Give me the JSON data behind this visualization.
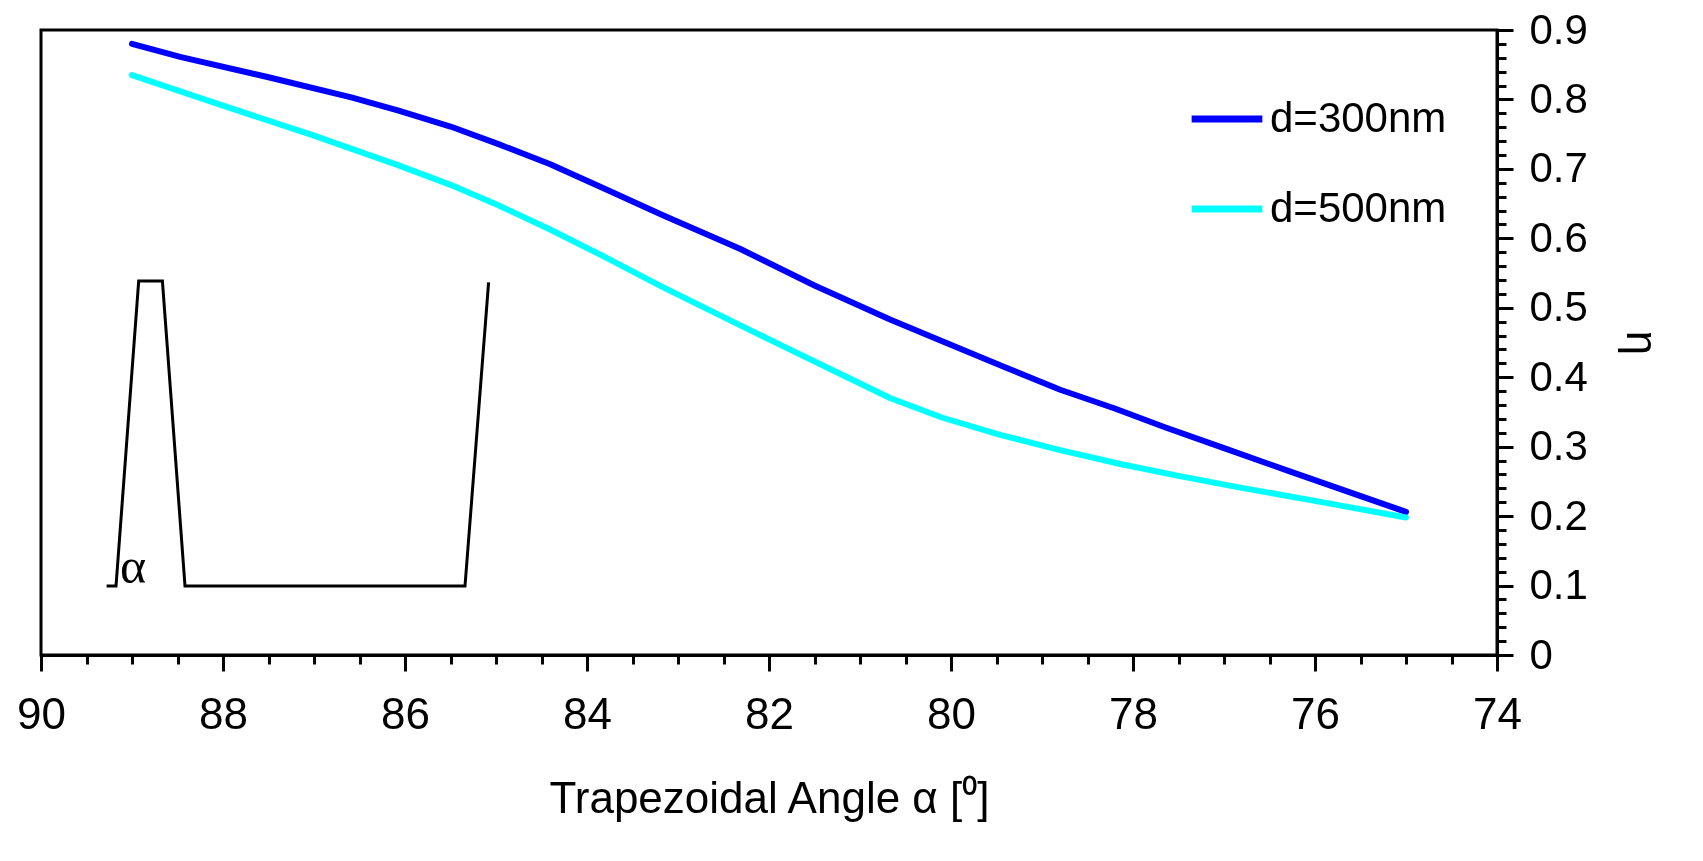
{
  "chart_data": {
    "type": "line",
    "xlabel": "Trapezoidal Angle α [⁰]",
    "ylabel": "η",
    "legend": "top right",
    "annotations": [
      "α"
    ],
    "xlim": [
      90,
      74
    ],
    "ylim": [
      0,
      0.9
    ],
    "xticks": [
      90,
      {
        "value": 89.5,
        "label": null
      },
      {
        "value": 89,
        "label": null
      },
      {
        "value": 88.5,
        "label": null
      },
      88,
      {
        "value": 87.5,
        "label": null
      },
      {
        "value": 87,
        "label": null
      },
      {
        "value": 86.5,
        "label": null
      },
      86,
      {
        "value": 85.5,
        "label": null
      },
      {
        "value": 85,
        "label": null
      },
      {
        "value": 84.5,
        "label": null
      },
      84,
      {
        "value": 83.5,
        "label": null
      },
      {
        "value": 83,
        "label": null
      },
      {
        "value": 82.5,
        "label": null
      },
      82,
      {
        "value": 81.5,
        "label": null
      },
      {
        "value": 81,
        "label": null
      },
      {
        "value": 80.5,
        "label": null
      },
      80,
      {
        "value": 79.5,
        "label": null
      },
      {
        "value": 79,
        "label": null
      },
      {
        "value": 78.5,
        "label": null
      },
      78,
      {
        "value": 77.5,
        "label": null
      },
      {
        "value": 77,
        "label": null
      },
      {
        "value": 76.5,
        "label": null
      },
      76,
      {
        "value": 75.5,
        "label": null
      },
      {
        "value": 75,
        "label": null
      },
      {
        "value": 74.5,
        "label": null
      },
      74
    ],
    "yticks": [
      0,
      {
        "value": 0.02,
        "label": null
      },
      {
        "value": 0.04,
        "label": null
      },
      {
        "value": 0.06,
        "label": null
      },
      {
        "value": 0.08,
        "label": null
      },
      0.1,
      {
        "value": 0.12,
        "label": null
      },
      {
        "value": 0.14,
        "label": null
      },
      {
        "value": 0.16,
        "label": null
      },
      {
        "value": 0.18,
        "label": null
      },
      0.2,
      {
        "value": 0.22,
        "label": null
      },
      {
        "value": 0.24,
        "label": null
      },
      {
        "value": 0.26,
        "label": null
      },
      {
        "value": 0.28,
        "label": null
      },
      0.3,
      {
        "value": 0.32,
        "label": null
      },
      {
        "value": 0.34,
        "label": null
      },
      {
        "value": 0.36,
        "label": null
      },
      {
        "value": 0.38,
        "label": null
      },
      0.4,
      {
        "value": 0.42,
        "label": null
      },
      {
        "value": 0.44,
        "label": null
      },
      {
        "value": 0.46,
        "label": null
      },
      {
        "value": 0.48,
        "label": null
      },
      0.5,
      {
        "value": 0.52,
        "label": null
      },
      {
        "value": 0.54,
        "label": null
      },
      {
        "value": 0.56,
        "label": null
      },
      {
        "value": 0.58,
        "label": null
      },
      0.6,
      {
        "value": 0.62,
        "label": null
      },
      {
        "value": 0.64,
        "label": null
      },
      {
        "value": 0.66,
        "label": null
      },
      {
        "value": 0.68,
        "label": null
      },
      0.7,
      {
        "value": 0.72,
        "label": null
      },
      {
        "value": 0.74,
        "label": null
      },
      {
        "value": 0.76,
        "label": null
      },
      {
        "value": 0.78,
        "label": null
      },
      0.8,
      {
        "value": 0.82,
        "label": null
      },
      {
        "value": 0.84,
        "label": null
      },
      {
        "value": 0.86,
        "label": null
      },
      {
        "value": 0.88,
        "label": null
      },
      0.9
    ],
    "grid": false,
    "marker": "none",
    "line_style": "solid",
    "series": [
      {
        "name": "d=300nm",
        "color": "#0000ff",
        "x": [
          89,
          88.46,
          87.5,
          86.59,
          86.07,
          85.5,
          84.98,
          84.41,
          83.8,
          83.16,
          82.32,
          81.5,
          80.67,
          80.01,
          79.4,
          78.8,
          78.2,
          77.65,
          77,
          76.27,
          75
        ],
        "values": [
          0.88,
          0.861,
          0.832,
          0.803,
          0.784,
          0.761,
          0.736,
          0.707,
          0.671,
          0.633,
          0.585,
          0.532,
          0.483,
          0.447,
          0.414,
          0.382,
          0.355,
          0.328,
          0.298,
          0.264,
          0.206
        ]
      },
      {
        "name": "d=500nm",
        "color": "#00ffff",
        "x": [
          89,
          88,
          87,
          86.07,
          85.5,
          84.98,
          84.41,
          83.8,
          83.2,
          82.32,
          81.88,
          81.3,
          80.67,
          80.1,
          79.46,
          78.8,
          78.14,
          77.5,
          76.82,
          76,
          75
        ],
        "values": [
          0.835,
          0.791,
          0.748,
          0.705,
          0.677,
          0.648,
          0.613,
          0.573,
          0.532,
          0.475,
          0.447,
          0.41,
          0.37,
          0.342,
          0.317,
          0.295,
          0.275,
          0.258,
          0.241,
          0.222,
          0.198
        ]
      }
    ]
  }
}
